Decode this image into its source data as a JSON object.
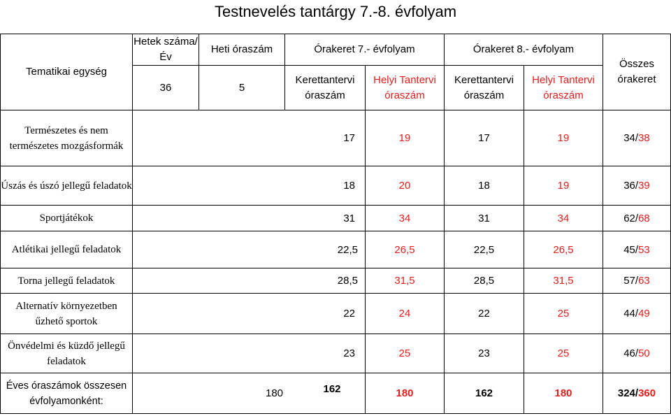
{
  "title": "Testnevelés tantárgy 7.-8. évfolyam",
  "header": {
    "unit": "Tematikai egység",
    "weeks_label": "Hetek száma/Év",
    "weekly_label": "Heti óraszám",
    "weeks_value": "36",
    "weekly_value": "5",
    "grade7": "Órakeret 7.- évfolyam",
    "grade8": "Órakeret 8.- évfolyam",
    "framework": "Kerettantervi óraszám",
    "local": "Helyi Tantervi óraszám",
    "total": "Összes órakeret"
  },
  "rows": [
    {
      "unit": "Természetes és nem természetes mozgásformák",
      "k7": "17",
      "h7": "19",
      "k8": "17",
      "h8": "19",
      "total_a": "34/",
      "total_b": "38"
    },
    {
      "unit": "Úszás és úszó jellegű feladatok",
      "k7": "18",
      "h7": "20",
      "k8": "18",
      "h8": "19",
      "total_a": "36/",
      "total_b": "39"
    },
    {
      "unit": "Sportjátékok",
      "k7": "31",
      "h7": "34",
      "k8": "31",
      "h8": "34",
      "total_a": "62/",
      "total_b": "68"
    },
    {
      "unit": "Atlétikai jellegű feladatok",
      "k7": "22,5",
      "h7": "26,5",
      "k8": "22,5",
      "h8": "26,5",
      "total_a": "45/",
      "total_b": "53"
    },
    {
      "unit": "Torna jellegű feladatok",
      "k7": "28,5",
      "h7": "31,5",
      "k8": "28,5",
      "h8": "31,5",
      "total_a": "57/",
      "total_b": "63"
    },
    {
      "unit": "Alternatív környezetben űzhető sportok",
      "k7": "22",
      "h7": "24",
      "k8": "22",
      "h8": "25",
      "total_a": "44/",
      "total_b": "49"
    },
    {
      "unit": "Önvédelmi és küzdő jellegű feladatok",
      "k7": "23",
      "h7": "25",
      "k8": "23",
      "h8": "25",
      "total_a": "46/",
      "total_b": "50"
    }
  ],
  "summary": {
    "label": "Éves óraszámok összesen évfolyamonként:",
    "annual": "180",
    "k7": "162",
    "h7": "180",
    "k8": "162",
    "h8": "180",
    "total_a": "324/",
    "total_b": "360"
  },
  "colors": {
    "local_curriculum": "#e0201d"
  }
}
